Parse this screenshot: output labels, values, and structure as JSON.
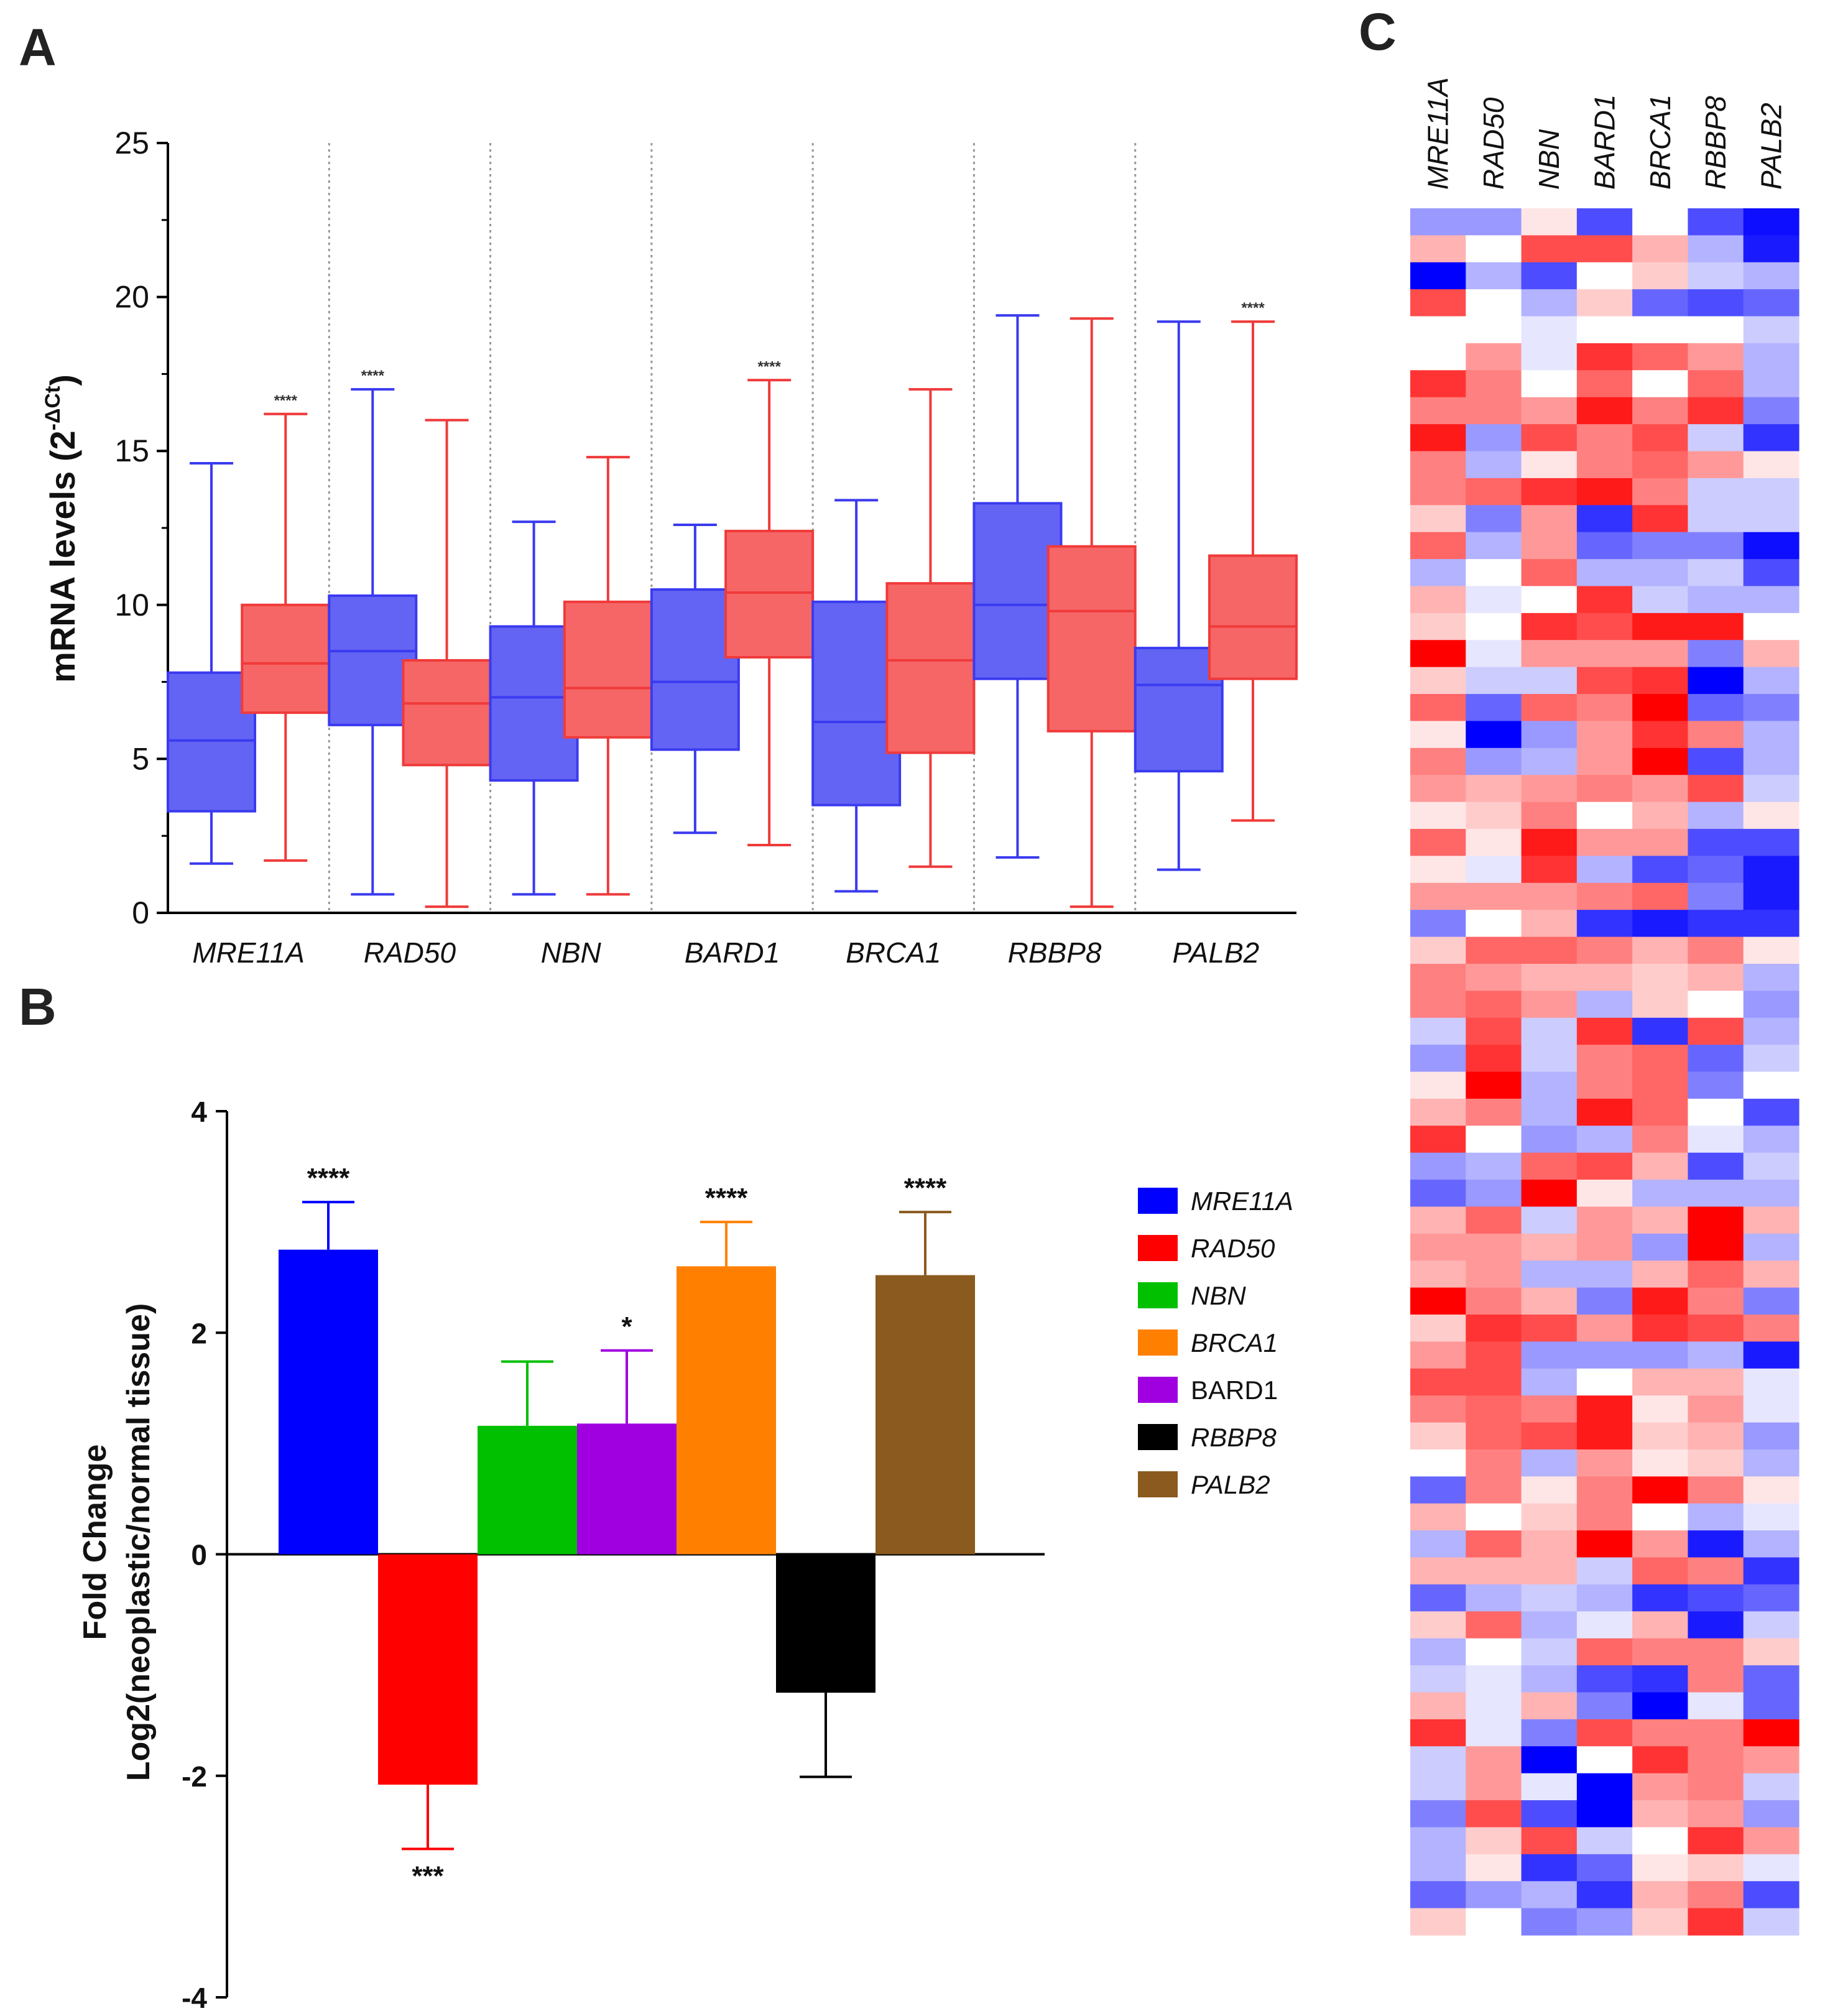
{
  "panel_labels": {
    "a": "A",
    "b": "B",
    "c": "C"
  },
  "chart_data": [
    {
      "panel": "A",
      "type": "box",
      "ylabel_main": "mRNA levels (2",
      "ylabel_sup": "-ΔCt",
      "ylabel_close": ")",
      "ylim": [
        0,
        25
      ],
      "yticks": [
        "0",
        "5",
        "10",
        "15",
        "20",
        "25"
      ],
      "categories": [
        "MRE11A",
        "RAD50",
        "NBN",
        "BARD1",
        "BRCA1",
        "RBBP8",
        "PALB2"
      ],
      "series_colors": {
        "normal": "#3a3af0",
        "neoplastic": "#f03a3a"
      },
      "boxes": [
        {
          "gene": "MRE11A",
          "group": "normal",
          "min": 1.6,
          "q1": 3.3,
          "median": 5.6,
          "q3": 7.8,
          "max": 14.6,
          "sig": ""
        },
        {
          "gene": "MRE11A",
          "group": "neoplastic",
          "min": 1.7,
          "q1": 6.5,
          "median": 8.1,
          "q3": 10.0,
          "max": 16.2,
          "sig": "****"
        },
        {
          "gene": "RAD50",
          "group": "normal",
          "min": 0.6,
          "q1": 6.1,
          "median": 8.5,
          "q3": 10.3,
          "max": 17.0,
          "sig": "****"
        },
        {
          "gene": "RAD50",
          "group": "neoplastic",
          "min": 0.2,
          "q1": 4.8,
          "median": 6.8,
          "q3": 8.2,
          "max": 16.0,
          "sig": ""
        },
        {
          "gene": "NBN",
          "group": "normal",
          "min": 0.6,
          "q1": 4.3,
          "median": 7.0,
          "q3": 9.3,
          "max": 12.7,
          "sig": ""
        },
        {
          "gene": "NBN",
          "group": "neoplastic",
          "min": 0.6,
          "q1": 5.7,
          "median": 7.3,
          "q3": 10.1,
          "max": 14.8,
          "sig": ""
        },
        {
          "gene": "BARD1",
          "group": "normal",
          "min": 2.6,
          "q1": 5.3,
          "median": 7.5,
          "q3": 10.5,
          "max": 12.6,
          "sig": ""
        },
        {
          "gene": "BARD1",
          "group": "neoplastic",
          "min": 2.2,
          "q1": 8.3,
          "median": 10.4,
          "q3": 12.4,
          "max": 17.3,
          "sig": "****"
        },
        {
          "gene": "BRCA1",
          "group": "normal",
          "min": 0.7,
          "q1": 3.5,
          "median": 6.2,
          "q3": 10.1,
          "max": 13.4,
          "sig": ""
        },
        {
          "gene": "BRCA1",
          "group": "neoplastic",
          "min": 1.5,
          "q1": 5.2,
          "median": 8.2,
          "q3": 10.7,
          "max": 17.0,
          "sig": ""
        },
        {
          "gene": "RBBP8",
          "group": "normal",
          "min": 1.8,
          "q1": 7.6,
          "median": 10.0,
          "q3": 13.3,
          "max": 19.4,
          "sig": ""
        },
        {
          "gene": "RBBP8",
          "group": "neoplastic",
          "min": 0.2,
          "q1": 5.9,
          "median": 9.8,
          "q3": 11.9,
          "max": 19.3,
          "sig": ""
        },
        {
          "gene": "PALB2",
          "group": "normal",
          "min": 1.4,
          "q1": 4.6,
          "median": 7.4,
          "q3": 8.6,
          "max": 19.2,
          "sig": ""
        },
        {
          "gene": "PALB2",
          "group": "neoplastic",
          "min": 3.0,
          "q1": 7.6,
          "median": 9.3,
          "q3": 11.6,
          "max": 19.2,
          "sig": "****"
        }
      ]
    },
    {
      "panel": "B",
      "type": "bar",
      "ylabel_line1": "Fold Change",
      "ylabel_line2": "Log2(neoplastic/normal tissue)",
      "ylim": [
        -4,
        4
      ],
      "yticks": [
        "-4",
        "-2",
        "0",
        "2",
        "4"
      ],
      "categories": [
        "MRE11A",
        "RAD50",
        "NBN",
        "BARD1",
        "BRCA1",
        "RBBP8",
        "PALB2"
      ],
      "values": [
        2.75,
        -2.08,
        1.16,
        1.18,
        2.6,
        -1.25,
        2.52
      ],
      "errors": [
        0.43,
        0.58,
        0.58,
        0.66,
        0.4,
        0.76,
        0.57
      ],
      "significance": [
        "****",
        "***",
        "",
        "*",
        "****",
        "",
        "****"
      ],
      "colors": [
        "#0000ff",
        "#ff0000",
        "#00c000",
        "#a000e0",
        "#ff8000",
        "#000000",
        "#8b5a1e"
      ],
      "legend": [
        {
          "label": "MRE11A",
          "color": "#0000ff"
        },
        {
          "label": "RAD50",
          "color": "#ff0000"
        },
        {
          "label": "NBN",
          "color": "#00c000"
        },
        {
          "label": "BRCA1",
          "color": "#ff8000"
        },
        {
          "label": "BARD1",
          "color": "#a000e0"
        },
        {
          "label": "RBBP8",
          "color": "#000000"
        },
        {
          "label": "PALB2",
          "color": "#8b5a1e"
        }
      ]
    },
    {
      "panel": "C",
      "type": "heatmap",
      "columns": [
        "MRE11A",
        "RAD50",
        "NBN",
        "BARD1",
        "BRCA1",
        "RBBP8",
        "PALB2"
      ],
      "color_low": "#0000ff",
      "color_mid": "#ffffff",
      "color_high": "#ff0000",
      "value_range": [
        -1,
        1
      ],
      "values": [
        [
          -0.4,
          -0.4,
          0.1,
          -0.7,
          0.0,
          -0.7,
          -0.95
        ],
        [
          0.3,
          0.0,
          0.7,
          0.7,
          0.3,
          -0.3,
          -0.9
        ],
        [
          -1.0,
          -0.3,
          -0.7,
          0.0,
          0.2,
          -0.2,
          -0.3
        ],
        [
          0.7,
          0.0,
          -0.3,
          0.2,
          -0.6,
          -0.7,
          -0.6
        ],
        [
          0.0,
          0.0,
          -0.1,
          0.0,
          0.0,
          0.0,
          -0.2
        ],
        [
          0.0,
          0.4,
          -0.1,
          0.8,
          0.6,
          0.4,
          -0.3
        ],
        [
          0.8,
          0.5,
          0.0,
          0.6,
          0.0,
          0.6,
          -0.3
        ],
        [
          0.5,
          0.5,
          0.4,
          0.9,
          0.5,
          0.8,
          -0.5
        ],
        [
          0.9,
          -0.4,
          0.7,
          0.5,
          0.7,
          -0.2,
          -0.8
        ],
        [
          0.5,
          -0.3,
          0.1,
          0.5,
          0.6,
          0.4,
          0.1
        ],
        [
          0.5,
          0.6,
          0.8,
          0.9,
          0.5,
          -0.2,
          -0.2
        ],
        [
          0.2,
          -0.5,
          0.4,
          -0.8,
          0.8,
          -0.2,
          -0.2
        ],
        [
          0.6,
          -0.3,
          0.4,
          -0.6,
          -0.5,
          -0.5,
          -0.95
        ],
        [
          -0.3,
          0.0,
          0.6,
          -0.3,
          -0.3,
          -0.2,
          -0.7
        ],
        [
          0.3,
          -0.1,
          0.0,
          0.8,
          -0.2,
          -0.3,
          -0.3
        ],
        [
          0.2,
          0.0,
          0.8,
          0.7,
          0.9,
          0.9,
          0.0
        ],
        [
          1.0,
          -0.1,
          0.4,
          0.4,
          0.4,
          -0.5,
          0.3
        ],
        [
          0.2,
          -0.2,
          -0.2,
          0.7,
          0.8,
          -1.0,
          -0.3
        ],
        [
          0.6,
          -0.6,
          0.6,
          0.5,
          1.0,
          -0.6,
          -0.5
        ],
        [
          0.1,
          -1.0,
          -0.4,
          0.4,
          0.8,
          0.5,
          -0.3
        ],
        [
          0.5,
          -0.4,
          -0.3,
          0.4,
          1.0,
          -0.7,
          -0.3
        ],
        [
          0.4,
          0.3,
          0.4,
          0.5,
          0.4,
          0.7,
          -0.2
        ],
        [
          0.1,
          0.2,
          0.5,
          0.0,
          0.3,
          -0.3,
          0.1
        ],
        [
          0.6,
          0.1,
          0.9,
          0.4,
          0.4,
          -0.7,
          -0.7
        ],
        [
          0.1,
          -0.1,
          0.8,
          -0.3,
          -0.7,
          -0.6,
          -0.9
        ],
        [
          0.4,
          0.4,
          0.4,
          0.5,
          0.6,
          -0.5,
          -0.9
        ],
        [
          -0.5,
          0.0,
          0.3,
          -0.8,
          -0.9,
          -0.8,
          -0.8
        ],
        [
          0.2,
          0.6,
          0.6,
          0.5,
          0.3,
          0.5,
          0.1
        ],
        [
          0.5,
          0.4,
          0.3,
          0.3,
          0.2,
          0.3,
          -0.3
        ],
        [
          0.5,
          0.6,
          0.4,
          -0.3,
          0.2,
          0.0,
          -0.4
        ],
        [
          -0.2,
          0.7,
          -0.2,
          0.8,
          -0.8,
          0.7,
          -0.3
        ],
        [
          -0.4,
          0.8,
          -0.2,
          0.5,
          0.6,
          -0.6,
          -0.2
        ],
        [
          0.1,
          1.0,
          -0.3,
          0.5,
          0.6,
          -0.5,
          0.0
        ],
        [
          0.3,
          0.5,
          -0.3,
          0.9,
          0.6,
          0.0,
          -0.7
        ],
        [
          0.8,
          0.0,
          -0.4,
          -0.3,
          0.5,
          -0.1,
          -0.3
        ],
        [
          -0.4,
          -0.3,
          0.6,
          0.7,
          0.3,
          -0.7,
          -0.2
        ],
        [
          -0.6,
          -0.4,
          1.0,
          0.1,
          -0.3,
          -0.3,
          -0.3
        ],
        [
          0.3,
          0.6,
          -0.2,
          0.4,
          0.3,
          1.0,
          0.3
        ],
        [
          0.4,
          0.4,
          0.3,
          0.4,
          -0.4,
          1.0,
          -0.3
        ],
        [
          0.3,
          0.4,
          -0.3,
          -0.3,
          0.3,
          0.6,
          0.3
        ],
        [
          1.0,
          0.5,
          0.3,
          -0.5,
          0.9,
          0.5,
          -0.5
        ],
        [
          0.2,
          0.8,
          0.7,
          0.4,
          0.8,
          0.7,
          0.5
        ],
        [
          0.4,
          0.7,
          -0.4,
          -0.4,
          -0.4,
          -0.3,
          -0.9
        ],
        [
          0.7,
          0.7,
          -0.3,
          0.0,
          0.3,
          0.3,
          -0.1
        ],
        [
          0.5,
          0.6,
          0.5,
          0.9,
          0.1,
          0.4,
          -0.1
        ],
        [
          0.2,
          0.6,
          0.7,
          0.9,
          0.2,
          0.3,
          -0.4
        ],
        [
          0.0,
          0.5,
          -0.3,
          0.4,
          0.1,
          0.2,
          -0.3
        ],
        [
          -0.6,
          0.5,
          0.1,
          0.5,
          1.0,
          0.5,
          0.1
        ],
        [
          0.3,
          0.0,
          0.2,
          0.5,
          0.0,
          -0.3,
          -0.1
        ],
        [
          -0.3,
          0.6,
          0.3,
          1.0,
          0.4,
          -0.9,
          -0.3
        ],
        [
          0.3,
          0.3,
          0.3,
          -0.2,
          0.6,
          0.5,
          -0.8
        ],
        [
          -0.6,
          -0.3,
          -0.2,
          -0.3,
          -0.8,
          -0.7,
          -0.6
        ],
        [
          0.2,
          0.6,
          -0.3,
          -0.1,
          0.3,
          -0.9,
          -0.2
        ],
        [
          -0.3,
          0.0,
          -0.2,
          0.6,
          0.5,
          0.5,
          0.2
        ],
        [
          -0.2,
          -0.1,
          -0.3,
          -0.7,
          -0.8,
          0.5,
          -0.6
        ],
        [
          0.3,
          -0.1,
          0.3,
          -0.5,
          -1.0,
          -0.1,
          -0.6
        ],
        [
          0.8,
          -0.1,
          -0.5,
          0.7,
          0.5,
          0.5,
          1.0
        ],
        [
          -0.2,
          0.4,
          -1.0,
          0.0,
          0.8,
          0.5,
          0.4
        ],
        [
          -0.2,
          0.4,
          -0.1,
          -1.0,
          0.4,
          0.5,
          -0.2
        ],
        [
          -0.5,
          0.7,
          -0.7,
          -1.0,
          0.3,
          0.4,
          -0.4
        ],
        [
          -0.3,
          0.2,
          0.7,
          -0.2,
          0.0,
          0.8,
          0.4
        ],
        [
          -0.3,
          0.1,
          -0.8,
          -0.6,
          0.1,
          0.2,
          -0.1
        ],
        [
          -0.6,
          -0.4,
          -0.3,
          -0.8,
          0.3,
          0.5,
          -0.7
        ],
        [
          0.2,
          0.0,
          -0.5,
          -0.4,
          0.2,
          0.8,
          -0.2
        ]
      ]
    }
  ]
}
